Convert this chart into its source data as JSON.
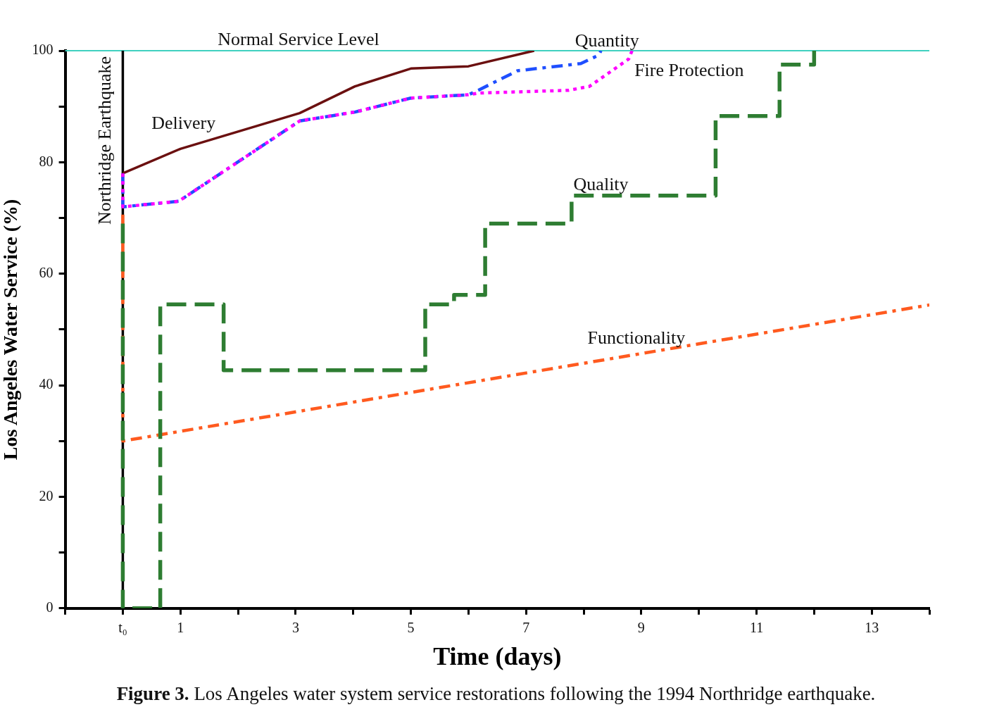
{
  "chart_data": {
    "type": "line",
    "xlabel": "Time (days)",
    "ylabel": "Los Angeles Water Service (%)",
    "xlim": [
      -1,
      14
    ],
    "ylim": [
      0,
      100
    ],
    "xticks": [
      {
        "value": -1,
        "label": null
      },
      {
        "value": 0,
        "label": "t₀"
      },
      1,
      {
        "value": 2,
        "label": null
      },
      3,
      {
        "value": 4,
        "label": null
      },
      5,
      {
        "value": 6,
        "label": null
      },
      7,
      {
        "value": 8,
        "label": null
      },
      9,
      {
        "value": 10,
        "label": null
      },
      11,
      {
        "value": 12,
        "label": null
      },
      13,
      {
        "value": 14,
        "label": null
      }
    ],
    "yticks": [
      0,
      {
        "value": 10,
        "label": null
      },
      20,
      {
        "value": 30,
        "label": null
      },
      40,
      {
        "value": 50,
        "label": null
      },
      60,
      {
        "value": 70,
        "label": null
      },
      80,
      {
        "value": 90,
        "label": null
      },
      100
    ],
    "grid": false,
    "legend": false,
    "marker": "none",
    "series": [
      {
        "name": "Delivery",
        "color": "#6b1010",
        "line_style": "solid",
        "x": [
          0,
          1,
          3.07,
          4.03,
          5,
          6,
          7.14
        ],
        "values": [
          78,
          82.4,
          88.8,
          93.6,
          96.8,
          97.2,
          100
        ]
      },
      {
        "name": "Quantity",
        "color": "#1f4fff",
        "line_style": "dashed",
        "x": [
          0,
          0,
          0.97,
          3.07,
          4.03,
          5,
          6,
          6.17,
          6.85,
          7.95,
          8.26,
          8.3
        ],
        "values": [
          78,
          72,
          73,
          87.4,
          89,
          91.5,
          92.1,
          92.9,
          96.4,
          97.7,
          99.2,
          100
        ]
      },
      {
        "name": "Fire Protection",
        "color": "#ff00ff",
        "line_style": "dotted",
        "x": [
          0,
          0,
          0.97,
          3.07,
          4.03,
          5,
          6,
          6.17,
          7.74,
          8.1,
          8.78,
          8.84
        ],
        "values": [
          78,
          72,
          73,
          87.4,
          89,
          91.5,
          92.1,
          92.4,
          92.9,
          93.6,
          98.5,
          100
        ]
      },
      {
        "name": "Functionality",
        "color": "#ff5a1f",
        "line_style": "dashed",
        "x": [
          0,
          0,
          14
        ],
        "values": [
          70.6,
          30,
          54.4
        ]
      },
      {
        "name": "Quality",
        "color": "#2e7d32",
        "line_style": "dashed",
        "x": [
          0,
          0,
          0.65,
          0.65,
          1.75,
          1.75,
          5.25,
          5.25,
          5.75,
          5.75,
          6.29,
          6.29,
          7.79,
          7.79,
          10.29,
          10.29,
          11.4,
          11.4,
          12,
          12
        ],
        "values": [
          69,
          0,
          0,
          54.5,
          54.5,
          42.7,
          42.7,
          54.5,
          54.5,
          56.2,
          56.2,
          69,
          69,
          74,
          74,
          88.3,
          88.3,
          97.5,
          97.5,
          100
        ]
      }
    ],
    "ref_lines": [
      {
        "axis": "y",
        "value": 100,
        "label": "Normal Service Level",
        "color": "#40d0c0"
      },
      {
        "axis": "x",
        "value": 0,
        "label": "Northridge Earthquake",
        "color": "#000000"
      }
    ],
    "annotations": [
      "Figure 3. Los Angeles water system service restorations following the 1994 Northridge earthquake."
    ]
  }
}
